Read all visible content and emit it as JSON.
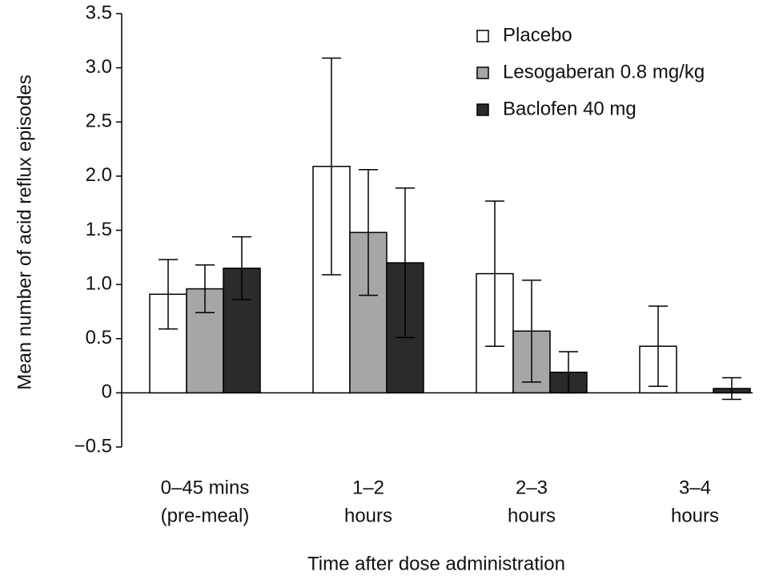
{
  "chart_data": {
    "type": "bar",
    "x_label": "Time after dose administration",
    "y_label": "Mean number of acid reflux episodes",
    "categories": [
      [
        "0–45 mins",
        "(pre-meal)"
      ],
      [
        "1–2",
        "hours"
      ],
      [
        "2–3",
        "hours"
      ],
      [
        "3–4",
        "hours"
      ]
    ],
    "series": [
      {
        "name": "Placebo",
        "color": "#ffffff",
        "values": [
          0.91,
          2.09,
          1.1,
          0.43
        ],
        "errors": [
          0.32,
          1.0,
          0.67,
          0.37
        ]
      },
      {
        "name": "Lesogaberan 0.8 mg/kg",
        "color": "#a6a6a6",
        "values": [
          0.96,
          1.48,
          0.57,
          0
        ],
        "errors": [
          0.22,
          0.58,
          0.47,
          0
        ]
      },
      {
        "name": "Baclofen 40 mg",
        "color": "#2b2b2b",
        "values": [
          1.15,
          1.2,
          0.19,
          0.04
        ],
        "errors": [
          0.29,
          0.69,
          0.19,
          0.1
        ]
      }
    ],
    "ylim": [
      -0.5,
      3.5
    ],
    "yticks": [
      {
        "value": -0.5,
        "label": "−0.5"
      },
      0,
      0.5,
      {
        "value": 1,
        "label": "1.0"
      },
      1.5,
      {
        "value": 2,
        "label": "2.0"
      },
      2.5,
      {
        "value": 3,
        "label": "3.0"
      },
      3.5
    ],
    "legend": "top-right"
  }
}
